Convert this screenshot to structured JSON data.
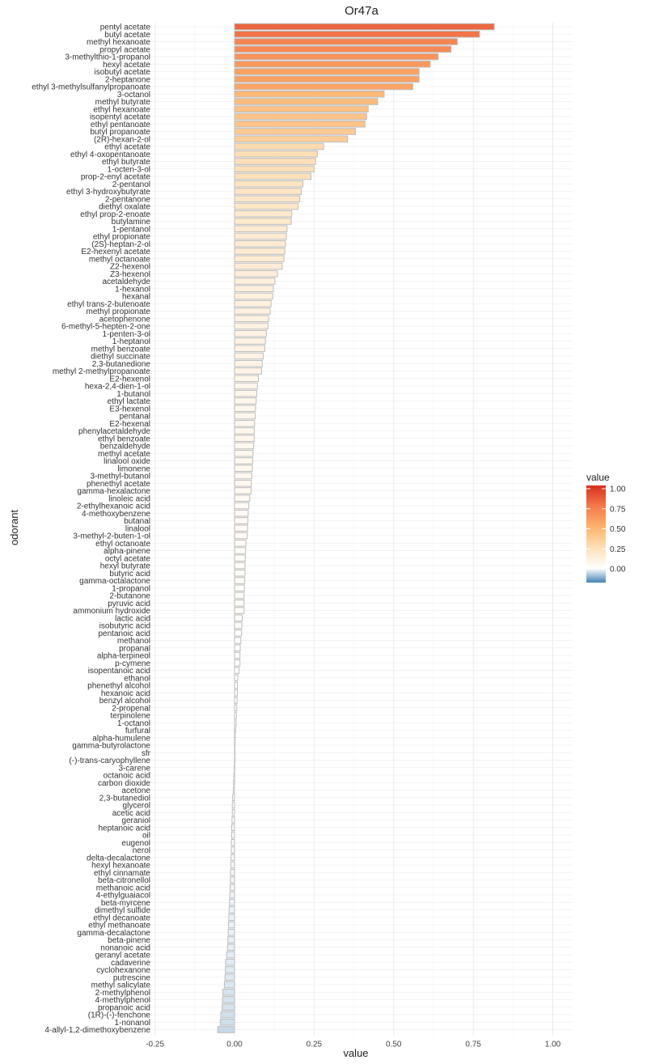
{
  "chart_data": {
    "type": "bar",
    "orientation": "horizontal",
    "title": "Or47a",
    "xlabel": "value",
    "ylabel": "odorant",
    "xlim": [
      -0.25,
      1.05
    ],
    "xticks": [
      -0.25,
      0.0,
      0.25,
      0.5,
      0.75,
      1.0
    ],
    "xtick_labels": [
      "-0.25",
      "0.00",
      "0.25",
      "0.50",
      "0.75",
      "1.00"
    ],
    "grid": true,
    "legend": {
      "title": "value",
      "position": "right",
      "ticks": [
        "1.00",
        "0.75",
        "0.50",
        "0.25",
        "0.00"
      ],
      "tick_values": [
        1.0,
        0.75,
        0.5,
        0.25,
        0.0
      ],
      "range": [
        -0.17,
        1.0
      ],
      "color_scale": [
        {
          "v": -0.17,
          "c": "#4682b4"
        },
        {
          "v": 0.0,
          "c": "#ffffff"
        },
        {
          "v": 0.25,
          "c": "#fee0b8"
        },
        {
          "v": 0.5,
          "c": "#fdb36e"
        },
        {
          "v": 0.75,
          "c": "#f47a4c"
        },
        {
          "v": 1.0,
          "c": "#d7301f"
        }
      ]
    },
    "categories": [
      "pentyl acetate",
      "butyl acetate",
      "methyl hexanoate",
      "propyl acetate",
      "3-methylthio-1-propanol",
      "hexyl acetate",
      "isobutyl acetate",
      "2-heptanone",
      "ethyl 3-methylsulfanylpropanoate",
      "3-octanol",
      "methyl butyrate",
      "ethyl hexanoate",
      "isopentyl acetate",
      "ethyl pentanoate",
      "butyl propanoate",
      "(2R)-hexan-2-ol",
      "ethyl acetate",
      "ethyl 4-oxopentanoate",
      "ethyl butyrate",
      "1-octen-3-ol",
      "prop-2-enyl acetate",
      "2-pentanol",
      "ethyl 3-hydroxybutyrate",
      "2-pentanone",
      "diethyl oxalate",
      "ethyl prop-2-enoate",
      "butylamine",
      "1-pentanol",
      "ethyl propionate",
      "(2S)-heptan-2-ol",
      "E2-hexenyl acetate",
      "methyl octanoate",
      "Z2-hexenol",
      "Z3-hexenol",
      "acetaldehyde",
      "1-hexanol",
      "hexanal",
      "ethyl trans-2-butenoate",
      "methyl propionate",
      "acetophenone",
      "6-methyl-5-hepten-2-one",
      "1-penten-3-ol",
      "1-heptanol",
      "methyl benzoate",
      "diethyl succinate",
      "2,3-butanedione",
      "methyl 2-methylpropanoate",
      "E2-hexenol",
      "hexa-2,4-dien-1-ol",
      "1-butanol",
      "ethyl lactate",
      "E3-hexenol",
      "pentanal",
      "E2-hexenal",
      "phenylacetaldehyde",
      "ethyl benzoate",
      "benzaldehyde",
      "methyl acetate",
      "linalool oxide",
      "limonene",
      "3-methyl-butanol",
      "phenethyl acetate",
      "gamma-hexalactone",
      "linoleic acid",
      "2-ethylhexanoic acid",
      "4-methoxybenzene",
      "butanal",
      "linalool",
      "3-methyl-2-buten-1-ol",
      "ethyl octanoate",
      "alpha-pinene",
      "octyl acetate",
      "hexyl butyrate",
      "butyric acid",
      "gamma-octalactone",
      "1-propanol",
      "2-butanone",
      "pyruvic acid",
      "ammonium hydroxide",
      "lactic acid",
      "isobutyric acid",
      "pentanoic acid",
      "methanol",
      "propanal",
      "alpha-terpineol",
      "p-cymene",
      "isopentanoic acid",
      "ethanol",
      "phenethyl alcohol",
      "hexanoic acid",
      "benzyl alcohol",
      "2-propenal",
      "terpinolene",
      "1-octanol",
      "furfural",
      "alpha-humulene",
      "gamma-butyrolactone",
      "sfr",
      "(-)-trans-caryophyllene",
      "3-carene",
      "octanoic acid",
      "carbon dioxide",
      "acetone",
      "2,3-butanediol",
      "glycerol",
      "acetic acid",
      "geraniol",
      "heptanoic acid",
      "oil",
      "eugenol",
      "nerol",
      "delta-decalactone",
      "hexyl hexanoate",
      "ethyl cinnamate",
      "beta-citronellol",
      "methanoic acid",
      "4-ethylguaiacol",
      "beta-myrcene",
      "dimethyl sulfide",
      "ethyl decanoate",
      "ethyl methanoate",
      "gamma-decalactone",
      "beta-pinene",
      "nonanoic acid",
      "geranyl acetate",
      "cadaverine",
      "cyclohexanone",
      "putrescine",
      "methyl salicylate",
      "2-methylphenol",
      "4-methylphenol",
      "propanoic acid",
      "(1R)-(-)-fenchone",
      "1-nonanol",
      "4-allyl-1,2-dimethoxybenzene"
    ],
    "values": [
      0.816,
      0.77,
      0.7,
      0.68,
      0.64,
      0.615,
      0.58,
      0.58,
      0.56,
      0.47,
      0.45,
      0.42,
      0.415,
      0.41,
      0.38,
      0.355,
      0.28,
      0.26,
      0.255,
      0.25,
      0.24,
      0.215,
      0.21,
      0.205,
      0.2,
      0.18,
      0.178,
      0.165,
      0.163,
      0.16,
      0.158,
      0.155,
      0.15,
      0.135,
      0.127,
      0.122,
      0.12,
      0.115,
      0.112,
      0.107,
      0.105,
      0.1,
      0.097,
      0.095,
      0.09,
      0.087,
      0.085,
      0.075,
      0.072,
      0.07,
      0.068,
      0.066,
      0.065,
      0.063,
      0.062,
      0.062,
      0.06,
      0.058,
      0.057,
      0.056,
      0.054,
      0.053,
      0.052,
      0.048,
      0.045,
      0.043,
      0.042,
      0.041,
      0.04,
      0.036,
      0.035,
      0.034,
      0.033,
      0.033,
      0.032,
      0.031,
      0.03,
      0.03,
      0.03,
      0.024,
      0.023,
      0.022,
      0.02,
      0.018,
      0.017,
      0.017,
      0.014,
      0.01,
      0.009,
      0.009,
      0.008,
      0.007,
      0.006,
      0.005,
      0.003,
      0.002,
      0.001,
      0.0,
      0.0,
      -0.001,
      -0.002,
      -0.003,
      -0.004,
      -0.006,
      -0.007,
      -0.007,
      -0.008,
      -0.009,
      -0.009,
      -0.01,
      -0.01,
      -0.011,
      -0.012,
      -0.013,
      -0.013,
      -0.014,
      -0.015,
      -0.016,
      -0.017,
      -0.018,
      -0.019,
      -0.02,
      -0.021,
      -0.022,
      -0.025,
      -0.028,
      -0.029,
      -0.03,
      -0.032,
      -0.037,
      -0.038,
      -0.039,
      -0.043,
      -0.045,
      -0.053
    ]
  }
}
